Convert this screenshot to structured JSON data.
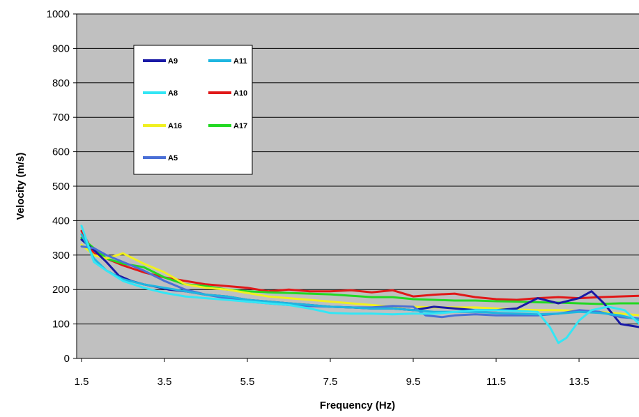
{
  "chart_data": {
    "type": "line",
    "title": "",
    "xlabel": "Frequency (Hz)",
    "ylabel": "Velocity (m/s)",
    "xlim": [
      1.5,
      15.0
    ],
    "ylim": [
      0,
      1000
    ],
    "x_ticks": [
      "1.5",
      "3.5",
      "5.5",
      "7.5",
      "9.5",
      "11.5",
      "13.5"
    ],
    "x_tick_values": [
      1.5,
      3.5,
      5.5,
      7.5,
      9.5,
      11.5,
      13.5
    ],
    "y_ticks": [
      "0",
      "100",
      "200",
      "300",
      "400",
      "500",
      "600",
      "700",
      "800",
      "900",
      "1000"
    ],
    "y_tick_values": [
      0,
      100,
      200,
      300,
      400,
      500,
      600,
      700,
      800,
      900,
      1000
    ],
    "grid": "horizontal",
    "plot_background": "#c0c0c0",
    "legend_position": "top-left",
    "series": [
      {
        "name": "A9",
        "color": "#1a1aa6",
        "x": [
          1.5,
          1.8,
          2.1,
          2.4,
          2.7,
          3.0,
          3.3,
          3.6,
          4.0,
          4.5,
          5.0,
          5.5,
          6.0,
          6.5,
          7.0,
          7.5,
          8.0,
          8.5,
          9.0,
          9.5,
          10.0,
          10.5,
          11.0,
          11.5,
          12.0,
          12.5,
          13.0,
          13.5,
          13.8,
          14.1,
          14.5,
          15.0
        ],
        "y": [
          345,
          315,
          280,
          240,
          225,
          215,
          208,
          200,
          195,
          185,
          180,
          170,
          165,
          160,
          155,
          150,
          148,
          145,
          145,
          140,
          150,
          145,
          140,
          140,
          145,
          175,
          160,
          175,
          195,
          160,
          100,
          90
        ]
      },
      {
        "name": "A11",
        "color": "#1fb6e0",
        "x": [
          1.5,
          1.8,
          2.1,
          2.5,
          3.0,
          3.5,
          4.0,
          4.5,
          5.0,
          5.5,
          6.0,
          6.5,
          7.0,
          7.5,
          8.0,
          8.5,
          9.0,
          9.5,
          10.0,
          10.5,
          11.0,
          11.5,
          12.0,
          12.5,
          13.0,
          13.5,
          14.0,
          14.5,
          15.0
        ],
        "y": [
          360,
          290,
          255,
          230,
          215,
          205,
          195,
          185,
          180,
          170,
          165,
          160,
          155,
          150,
          148,
          145,
          145,
          140,
          135,
          135,
          135,
          132,
          130,
          128,
          130,
          135,
          132,
          125,
          110
        ]
      },
      {
        "name": "A8",
        "color": "#33e6f5",
        "x": [
          1.5,
          1.8,
          2.1,
          2.5,
          3.0,
          3.5,
          4.0,
          4.5,
          5.0,
          5.5,
          6.0,
          6.5,
          7.0,
          7.5,
          8.0,
          8.5,
          9.0,
          9.5,
          10.0,
          10.5,
          11.0,
          11.5,
          12.0,
          12.5,
          12.8,
          13.0,
          13.2,
          13.5,
          13.8,
          14.2,
          14.6,
          15.0
        ],
        "y": [
          385,
          280,
          255,
          225,
          205,
          190,
          180,
          175,
          170,
          165,
          160,
          155,
          145,
          132,
          130,
          130,
          128,
          130,
          130,
          135,
          140,
          140,
          138,
          135,
          90,
          45,
          60,
          110,
          140,
          150,
          140,
          95
        ]
      },
      {
        "name": "A10",
        "color": "#e01818",
        "x": [
          1.5,
          1.8,
          2.1,
          2.5,
          3.0,
          3.5,
          4.0,
          4.5,
          5.0,
          5.5,
          6.0,
          6.5,
          7.0,
          7.5,
          8.0,
          8.5,
          9.0,
          9.5,
          10.0,
          10.5,
          11.0,
          11.5,
          12.0,
          12.5,
          13.0,
          13.5,
          14.0,
          14.5,
          15.0
        ],
        "y": [
          370,
          305,
          290,
          270,
          250,
          235,
          225,
          215,
          210,
          205,
          195,
          200,
          195,
          195,
          198,
          192,
          198,
          180,
          185,
          188,
          178,
          172,
          170,
          175,
          178,
          175,
          178,
          180,
          182
        ]
      },
      {
        "name": "A16",
        "color": "#f0f020",
        "x": [
          1.5,
          1.8,
          2.1,
          2.5,
          3.0,
          3.5,
          4.0,
          4.5,
          5.0,
          5.5,
          6.0,
          6.5,
          7.0,
          7.5,
          8.0,
          8.5,
          9.0,
          9.5,
          10.0,
          10.5,
          11.0,
          11.5,
          12.0,
          12.5,
          13.0,
          13.5,
          14.0,
          14.5,
          15.0
        ],
        "y": [
          330,
          300,
          290,
          305,
          275,
          250,
          215,
          205,
          200,
          190,
          180,
          175,
          170,
          165,
          160,
          155,
          150,
          150,
          148,
          148,
          148,
          145,
          142,
          140,
          140,
          138,
          135,
          130,
          125
        ]
      },
      {
        "name": "A17",
        "color": "#22d822",
        "x": [
          1.5,
          1.8,
          2.1,
          2.5,
          3.0,
          3.5,
          4.0,
          4.5,
          5.0,
          5.5,
          6.0,
          6.5,
          7.0,
          7.5,
          8.0,
          8.5,
          9.0,
          9.5,
          10.0,
          10.5,
          11.0,
          11.5,
          12.0,
          12.5,
          13.0,
          13.5,
          14.0,
          14.5,
          15.0
        ],
        "y": [
          350,
          320,
          290,
          275,
          265,
          235,
          215,
          210,
          200,
          195,
          192,
          190,
          188,
          186,
          182,
          178,
          178,
          172,
          170,
          168,
          168,
          166,
          165,
          163,
          162,
          160,
          158,
          160,
          160
        ]
      },
      {
        "name": "A5",
        "color": "#4a6fd6",
        "x": [
          1.5,
          1.8,
          2.1,
          2.5,
          3.0,
          3.5,
          4.0,
          4.5,
          5.0,
          5.5,
          6.0,
          6.5,
          7.0,
          7.5,
          8.0,
          8.5,
          9.0,
          9.5,
          9.8,
          10.2,
          10.5,
          11.0,
          11.5,
          12.0,
          12.5,
          13.0,
          13.5,
          14.0,
          14.5,
          15.0
        ],
        "y": [
          325,
          320,
          300,
          280,
          255,
          225,
          200,
          185,
          175,
          165,
          160,
          155,
          152,
          150,
          148,
          148,
          152,
          150,
          125,
          120,
          125,
          128,
          125,
          125,
          125,
          130,
          140,
          135,
          120,
          115
        ]
      }
    ]
  }
}
